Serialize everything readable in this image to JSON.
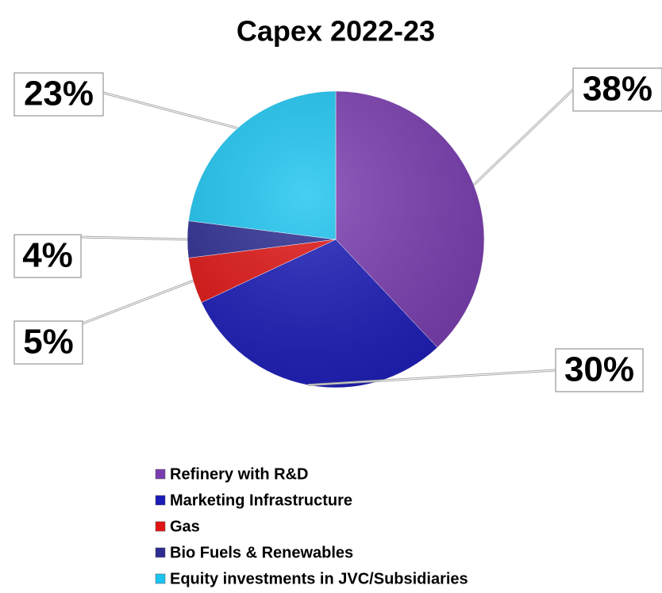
{
  "chart_data": {
    "type": "pie",
    "title": "Capex 2022-23",
    "categories": [
      "Refinery with R&D",
      "Marketing Infrastructure",
      "Gas",
      "Bio Fuels  & Renewables",
      "Equity investments in JVC/Subsidiaries"
    ],
    "values": [
      38,
      30,
      5,
      4,
      23
    ],
    "value_labels": [
      "38%",
      "30%",
      "5%",
      "4%",
      "23%"
    ],
    "colors": [
      "#7a3db0",
      "#1c1cb8",
      "#e01414",
      "#2c2c92",
      "#1cc4f0"
    ]
  }
}
